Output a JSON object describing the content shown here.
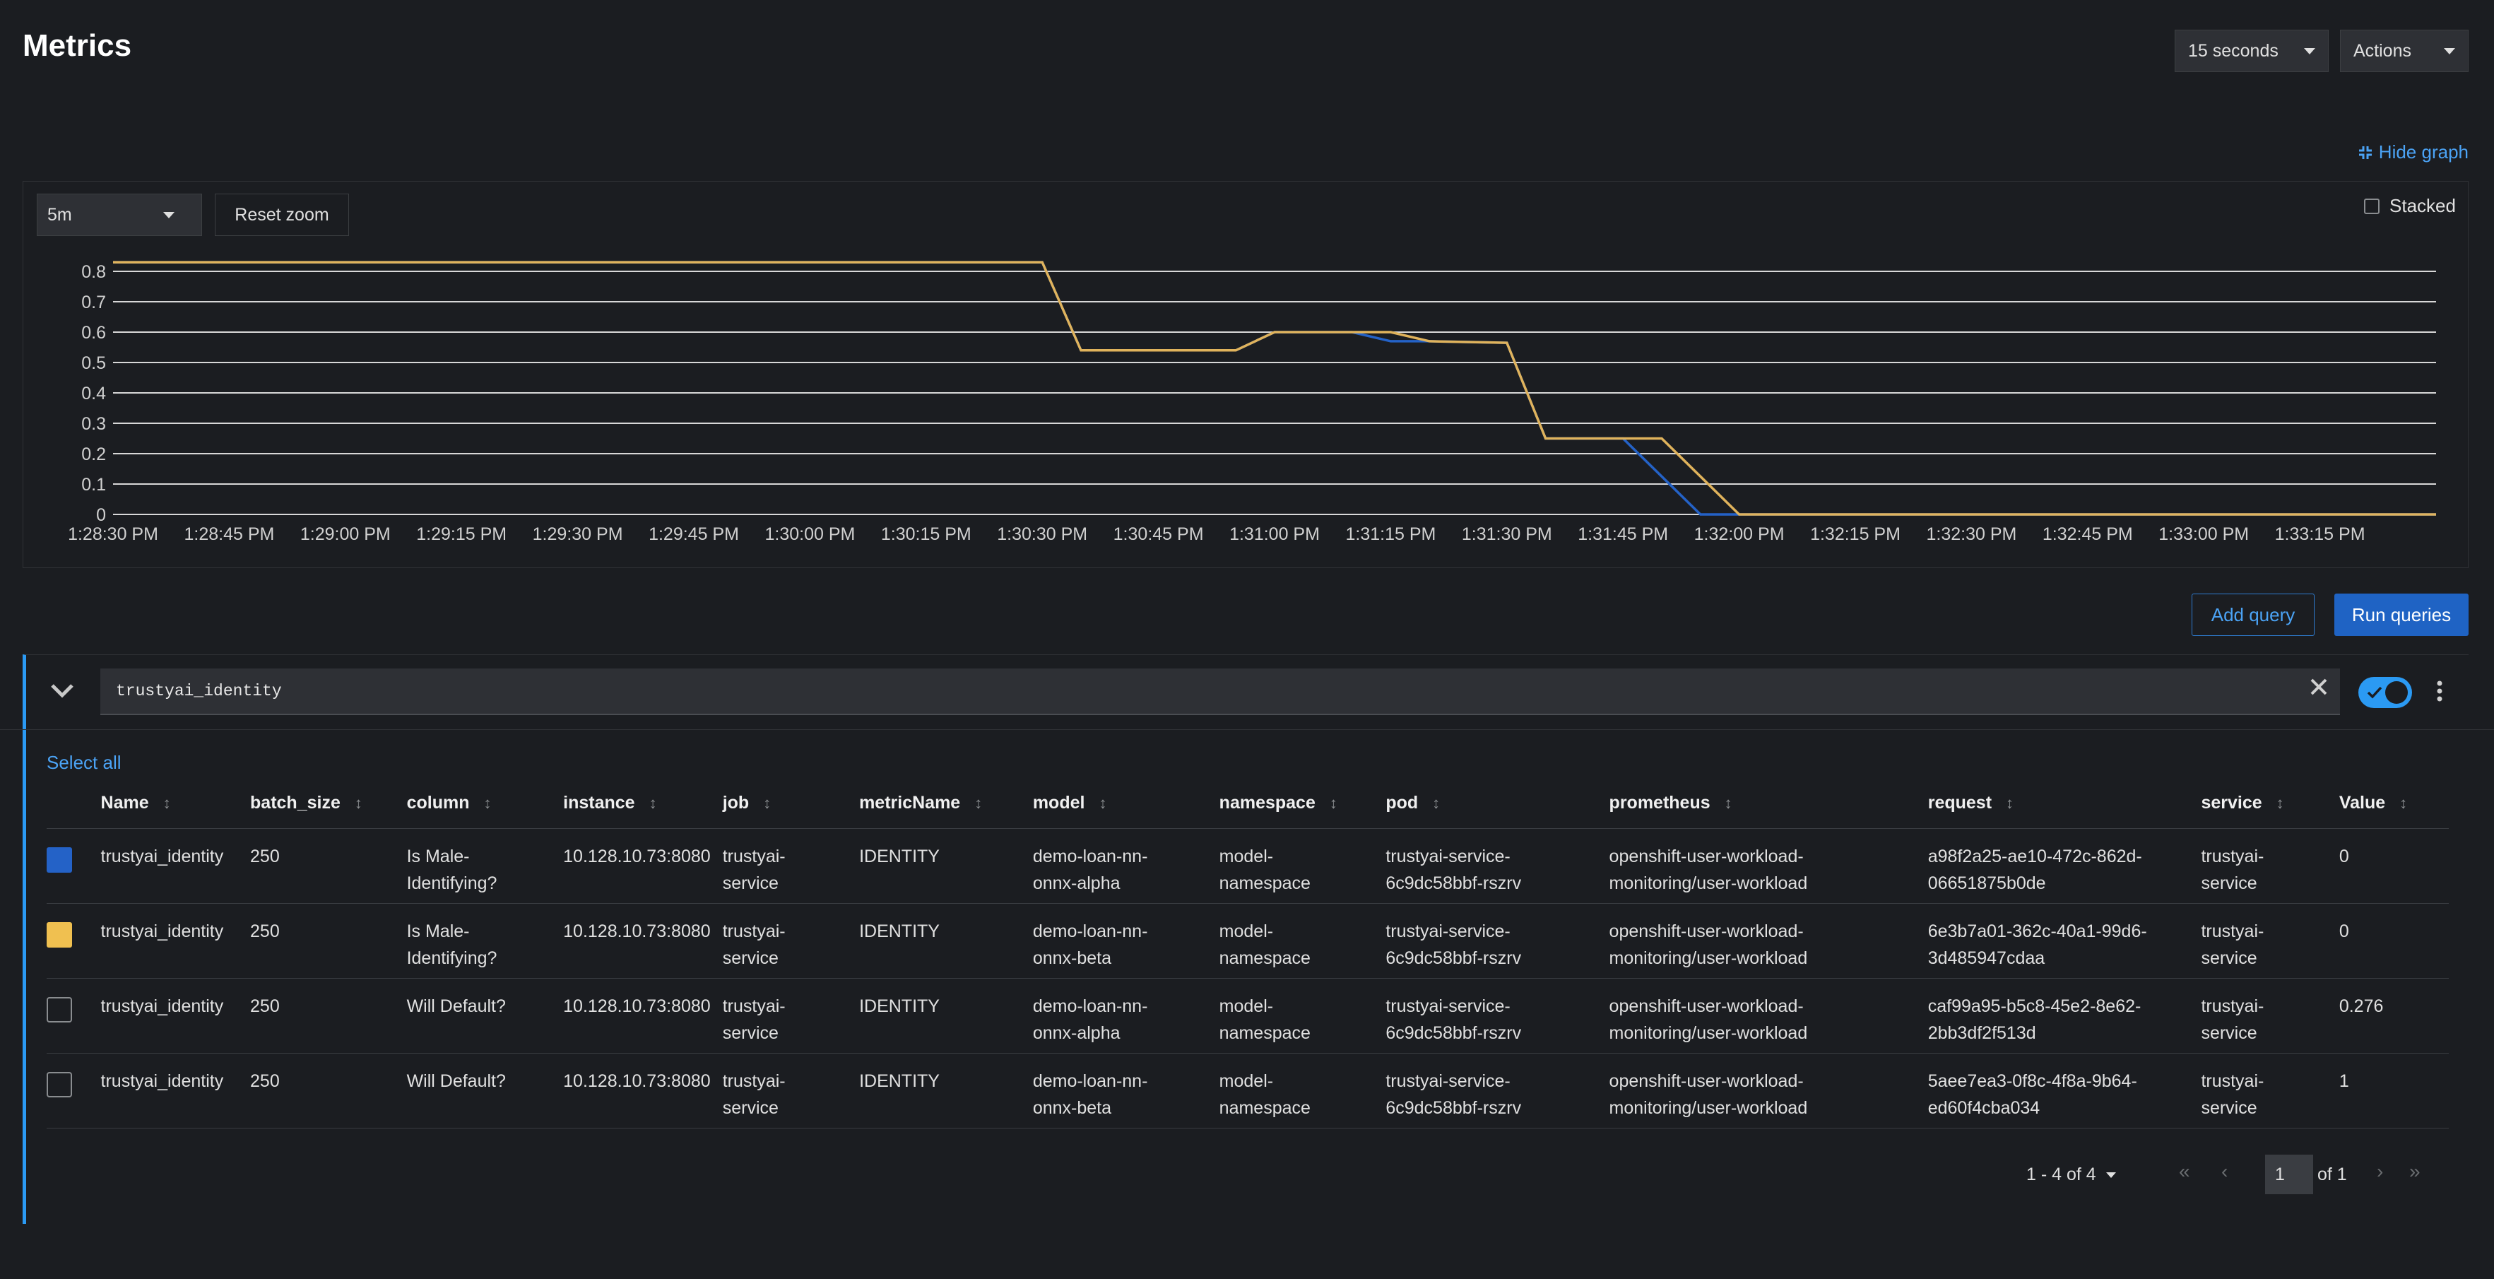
{
  "header": {
    "title": "Metrics",
    "interval": "15 seconds",
    "actions": "Actions"
  },
  "graph": {
    "hide_graph": "Hide graph",
    "time_range": "5m",
    "reset_zoom": "Reset zoom",
    "stacked_label": "Stacked"
  },
  "chart_data": {
    "type": "line",
    "title": "",
    "xlabel": "",
    "ylabel": "",
    "ylim": [
      0,
      0.8
    ],
    "y_ticks": [
      "0",
      "0.1",
      "0.2",
      "0.3",
      "0.4",
      "0.5",
      "0.6",
      "0.7",
      "0.8"
    ],
    "x_ticks": [
      "1:28:30 PM",
      "1:28:45 PM",
      "1:29:00 PM",
      "1:29:15 PM",
      "1:29:30 PM",
      "1:29:45 PM",
      "1:30:00 PM",
      "1:30:15 PM",
      "1:30:30 PM",
      "1:30:45 PM",
      "1:31:00 PM",
      "1:31:15 PM",
      "1:31:30 PM",
      "1:31:45 PM",
      "1:32:00 PM",
      "1:32:15 PM",
      "1:32:30 PM",
      "1:32:45 PM",
      "1:33:00 PM",
      "1:33:15 PM"
    ],
    "grid": true,
    "series": [
      {
        "color": "#2462c7",
        "x": [
          "1:28:30 PM",
          "1:30:30 PM",
          "1:30:35 PM",
          "1:30:55 PM",
          "1:31:00 PM",
          "1:31:10 PM",
          "1:31:15 PM",
          "1:31:20 PM",
          "1:31:30 PM",
          "1:31:35 PM",
          "1:31:45 PM",
          "1:31:55 PM",
          "1:32:00 PM",
          "1:33:30 PM"
        ],
        "values": [
          0.83,
          0.83,
          0.54,
          0.54,
          0.6,
          0.6,
          0.57,
          0.57,
          0.565,
          0.25,
          0.25,
          0.0,
          0.0,
          0.0
        ]
      },
      {
        "color": "#e0b35c",
        "x": [
          "1:28:30 PM",
          "1:30:30 PM",
          "1:30:35 PM",
          "1:30:55 PM",
          "1:31:00 PM",
          "1:31:15 PM",
          "1:31:20 PM",
          "1:31:30 PM",
          "1:31:35 PM",
          "1:31:50 PM",
          "1:32:00 PM",
          "1:33:30 PM"
        ],
        "values": [
          0.83,
          0.83,
          0.54,
          0.54,
          0.6,
          0.6,
          0.57,
          0.565,
          0.25,
          0.25,
          0.0,
          0.0
        ]
      }
    ]
  },
  "buttons": {
    "add_query": "Add query",
    "run_queries": "Run queries"
  },
  "query": {
    "expression": "trustyai_identity",
    "select_all": "Select all"
  },
  "table": {
    "columns": [
      "Name",
      "batch_size",
      "column",
      "instance",
      "job",
      "metricName",
      "model",
      "namespace",
      "pod",
      "prometheus",
      "request",
      "service",
      "Value"
    ],
    "rows": [
      {
        "swatch": "#2462c7",
        "cells": [
          "trustyai_identity",
          "250",
          "Is Male-\nIdentifying?",
          "10.128.10.73:8080",
          "trustyai-\nservice",
          "IDENTITY",
          "demo-loan-nn-\nonnx-alpha",
          "model-\nnamespace",
          "trustyai-service-\n6c9dc58bbf-rszrv",
          "openshift-user-workload-\nmonitoring/user-workload",
          "a98f2a25-ae10-472c-862d-\n06651875b0de",
          "trustyai-\nservice",
          "0"
        ]
      },
      {
        "swatch": "#f0c050",
        "cells": [
          "trustyai_identity",
          "250",
          "Is Male-\nIdentifying?",
          "10.128.10.73:8080",
          "trustyai-\nservice",
          "IDENTITY",
          "demo-loan-nn-\nonnx-beta",
          "model-\nnamespace",
          "trustyai-service-\n6c9dc58bbf-rszrv",
          "openshift-user-workload-\nmonitoring/user-workload",
          "6e3b7a01-362c-40a1-99d6-\n3d485947cdaa",
          "trustyai-\nservice",
          "0"
        ]
      },
      {
        "swatch": "",
        "cells": [
          "trustyai_identity",
          "250",
          "Will Default?",
          "10.128.10.73:8080",
          "trustyai-\nservice",
          "IDENTITY",
          "demo-loan-nn-\nonnx-alpha",
          "model-\nnamespace",
          "trustyai-service-\n6c9dc58bbf-rszrv",
          "openshift-user-workload-\nmonitoring/user-workload",
          "caf99a95-b5c8-45e2-8e62-\n2bb3df2f513d",
          "trustyai-\nservice",
          "0.276"
        ]
      },
      {
        "swatch": "",
        "cells": [
          "trustyai_identity",
          "250",
          "Will Default?",
          "10.128.10.73:8080",
          "trustyai-\nservice",
          "IDENTITY",
          "demo-loan-nn-\nonnx-beta",
          "model-\nnamespace",
          "trustyai-service-\n6c9dc58bbf-rszrv",
          "openshift-user-workload-\nmonitoring/user-workload",
          "5aee7ea3-0f8c-4f8a-9b64-\ned60f4cba034",
          "trustyai-\nservice",
          "1"
        ]
      }
    ]
  },
  "pagination": {
    "range": "1 - 4 of 4",
    "page": "1",
    "of_pages": "of 1"
  }
}
